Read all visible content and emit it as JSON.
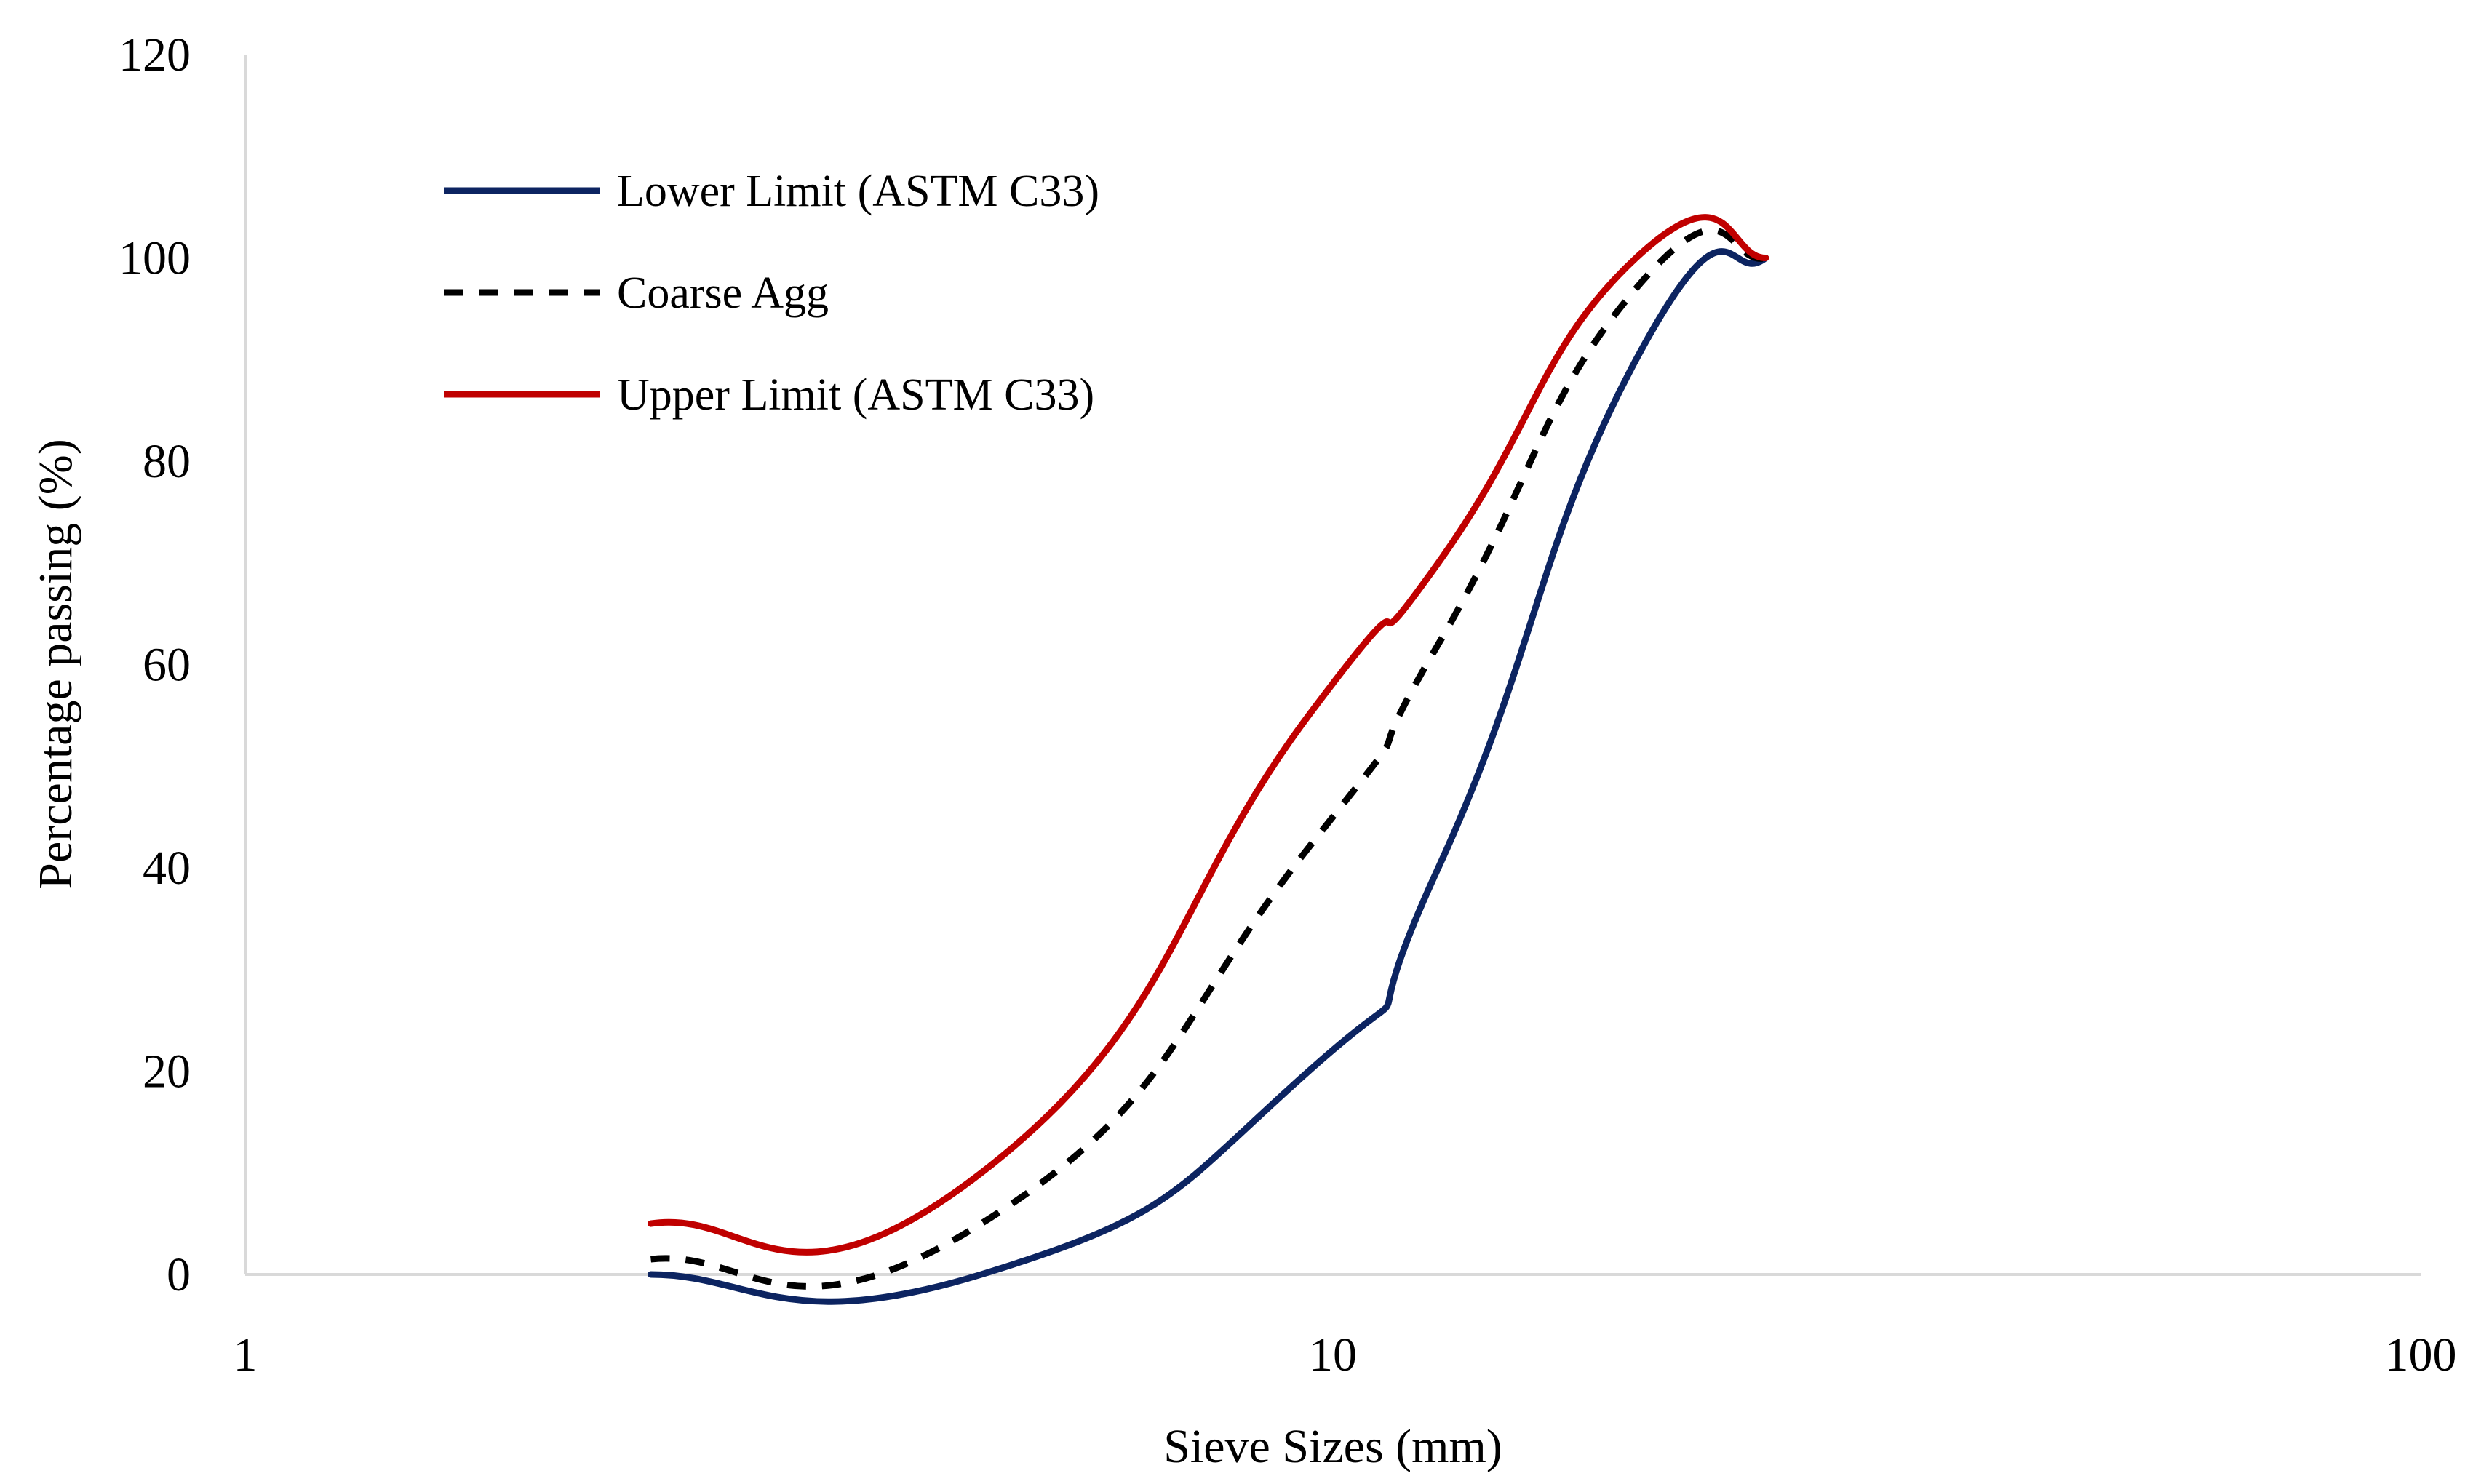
{
  "chart_data": {
    "type": "line",
    "title": "",
    "xlabel": "Sieve Sizes (mm)",
    "ylabel": "Percentage passing (%)",
    "x_scale": "log",
    "xlim": [
      1,
      100
    ],
    "ylim": [
      0,
      120
    ],
    "x_ticks": [
      1,
      10,
      100
    ],
    "x_tick_labels": [
      "1",
      "10",
      "100"
    ],
    "y_ticks": [
      0,
      20,
      40,
      60,
      80,
      100,
      120
    ],
    "y_tick_labels": [
      "0",
      "20",
      "40",
      "60",
      "80",
      "100",
      "120"
    ],
    "grid": false,
    "legend_position": "top-left",
    "x": [
      2.36,
      4.75,
      9.5,
      12.5,
      19,
      25
    ],
    "series": [
      {
        "name": "Lower Limit (ASTM C33)",
        "values": [
          0,
          0,
          20,
          40,
          90,
          100
        ],
        "color": "#0c2461",
        "dash": "solid"
      },
      {
        "name": "Coarse Agg",
        "values": [
          1.5,
          5,
          42,
          62,
          97,
          100
        ],
        "color": "#000000",
        "dash": "dashed"
      },
      {
        "name": "Upper Limit (ASTM C33)",
        "values": [
          5,
          10,
          55,
          70,
          100,
          100
        ],
        "color": "#c00000",
        "dash": "solid"
      }
    ]
  }
}
